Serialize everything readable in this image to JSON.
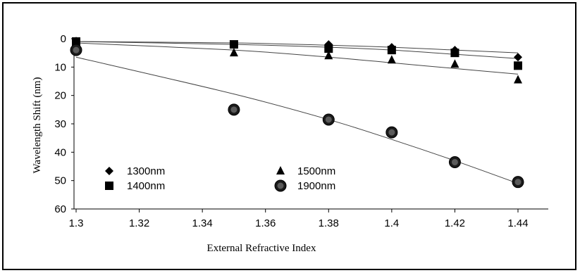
{
  "chart_data": {
    "type": "scatter",
    "xlabel": "External Refractive Index",
    "ylabel": "Wavelength Shift (nm)",
    "xlim": [
      1.3,
      1.44
    ],
    "ylim": [
      0,
      60
    ],
    "y_inverted": true,
    "x_ticks": [
      "1.3",
      "1.32",
      "1.34",
      "1.36",
      "1.38",
      "1.4",
      "1.42",
      "1.44"
    ],
    "y_ticks": [
      "0",
      "10",
      "20",
      "30",
      "40",
      "50",
      "60"
    ],
    "x": [
      1.3,
      1.35,
      1.38,
      1.4,
      1.42,
      1.44
    ],
    "grid": false,
    "legend": "bottom-left",
    "series": [
      {
        "name": "1300nm",
        "marker": "diamond",
        "color": "#000000",
        "values": [
          1,
          2,
          2,
          3,
          4,
          6.5
        ],
        "trend": [
          1.0,
          1.5,
          2.3,
          3.0,
          4.0,
          5.0
        ]
      },
      {
        "name": "1400nm",
        "marker": "square",
        "color": "#000000",
        "values": [
          1,
          2,
          3.5,
          4,
          5,
          9.5
        ],
        "trend": [
          1.0,
          2.0,
          3.0,
          4.0,
          5.5,
          7.0
        ]
      },
      {
        "name": "1500nm",
        "marker": "triangle",
        "color": "#000000",
        "values": [
          1,
          5,
          6,
          7.5,
          9,
          14.5
        ],
        "trend": [
          1.5,
          4.0,
          6.5,
          8.5,
          10.5,
          12.5
        ]
      },
      {
        "name": "1900nm",
        "marker": "circle",
        "color": "#000000",
        "values": [
          4,
          25,
          28.5,
          33,
          43.5,
          50.5
        ],
        "trend": [
          6.5,
          19.5,
          28.5,
          35.5,
          43,
          51
        ]
      }
    ]
  }
}
